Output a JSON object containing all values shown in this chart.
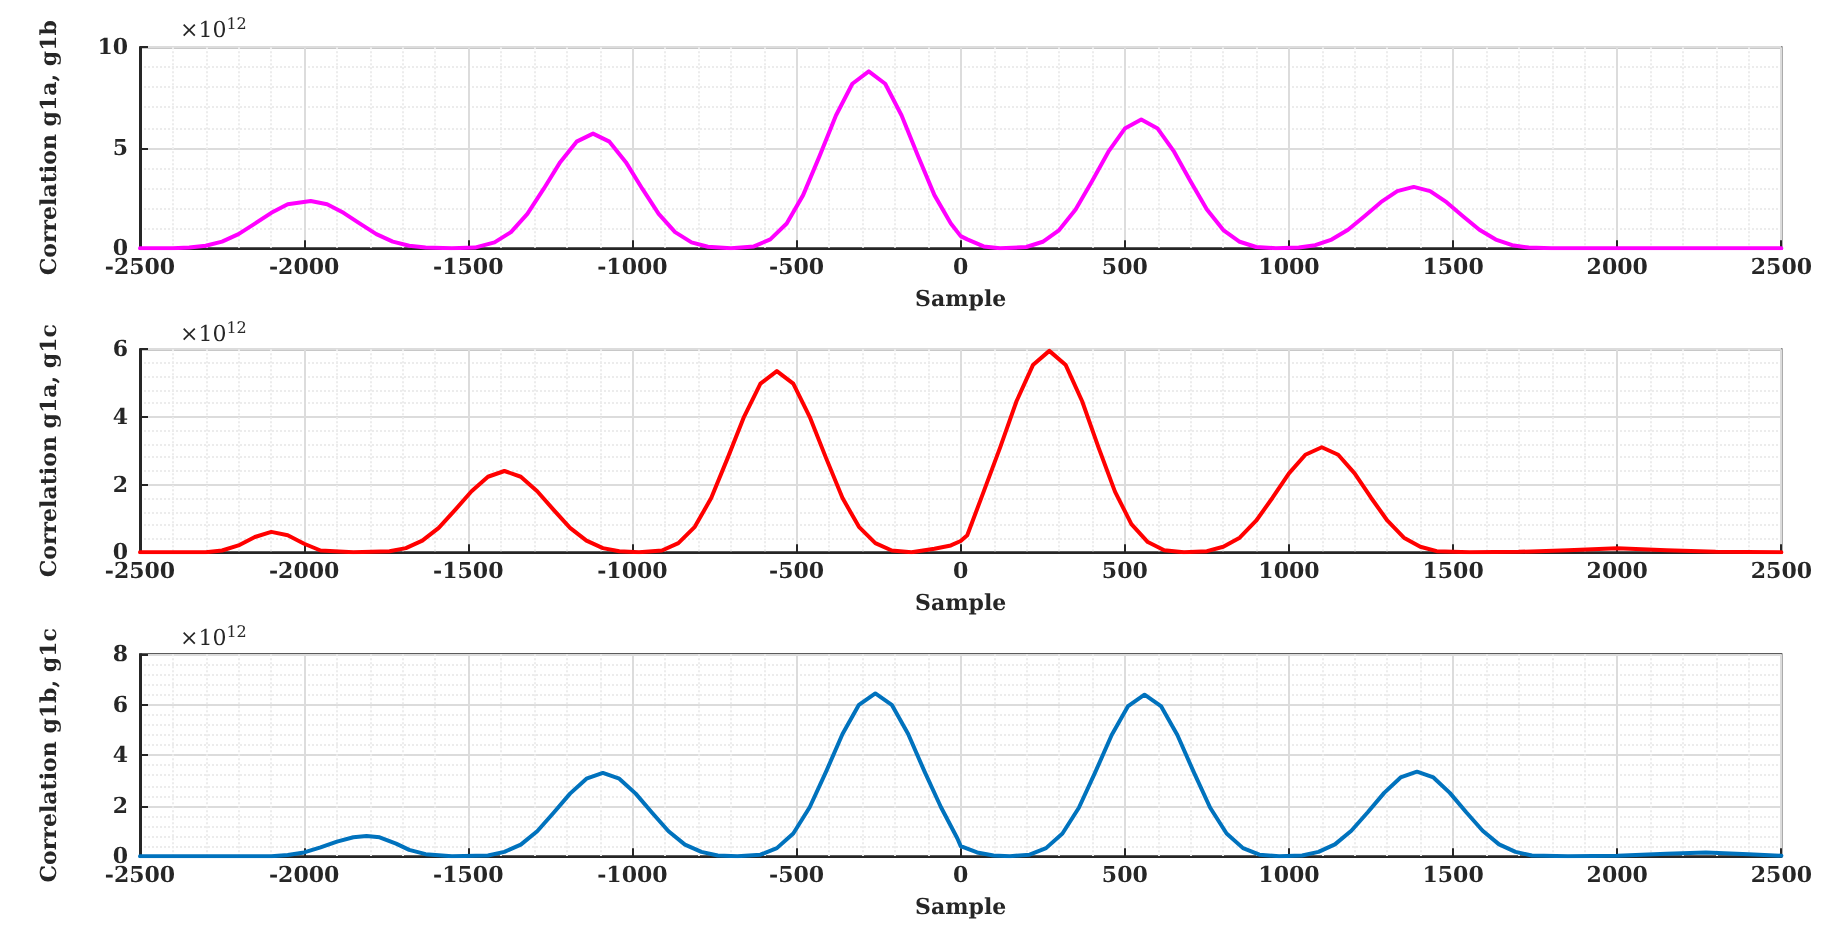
{
  "chart_data": [
    {
      "type": "line",
      "ylabel": "Correlation g1a, g1b",
      "xlabel": "Sample",
      "annotations": [
        "×10$^{12}$"
      ],
      "xlim": [
        -2500,
        2500
      ],
      "xticks": [
        -2500,
        -2000,
        -1500,
        -1000,
        -500,
        0,
        500,
        1000,
        1500,
        2000,
        2500
      ],
      "ylim": [
        0,
        10
      ],
      "yticks": [
        0,
        5,
        10
      ],
      "grid": true,
      "marker": "none",
      "line_style": "solid",
      "series": [
        {
          "color": "#ff00ff",
          "x": [
            -2500,
            -2400,
            -2350,
            -2300,
            -2250,
            -2200,
            -2150,
            -2100,
            -2050,
            -1980,
            -1930,
            -1880,
            -1830,
            -1780,
            -1730,
            -1680,
            -1630,
            -1550,
            -1480,
            -1420,
            -1370,
            -1320,
            -1270,
            -1220,
            -1170,
            -1120,
            -1070,
            -1020,
            -970,
            -920,
            -870,
            -820,
            -770,
            -700,
            -630,
            -580,
            -530,
            -480,
            -430,
            -380,
            -330,
            -280,
            -230,
            -180,
            -130,
            -80,
            -30,
            0,
            20,
            70,
            120,
            200,
            250,
            300,
            350,
            400,
            450,
            500,
            550,
            600,
            650,
            700,
            750,
            800,
            850,
            900,
            960,
            1030,
            1080,
            1130,
            1180,
            1230,
            1280,
            1330,
            1380,
            1430,
            1480,
            1530,
            1580,
            1630,
            1680,
            1730,
            1800,
            2500
          ],
          "values": [
            0,
            0,
            0.03,
            0.12,
            0.33,
            0.7,
            1.22,
            1.76,
            2.19,
            2.35,
            2.19,
            1.76,
            1.22,
            0.7,
            0.33,
            0.12,
            0.03,
            0,
            0.03,
            0.29,
            0.8,
            1.71,
            2.96,
            4.28,
            5.3,
            5.7,
            5.3,
            4.28,
            2.96,
            1.71,
            0.8,
            0.29,
            0.07,
            0,
            0.09,
            0.44,
            1.23,
            2.64,
            4.58,
            6.6,
            8.18,
            8.8,
            8.18,
            6.6,
            4.58,
            2.64,
            1.23,
            0.6,
            0.44,
            0.09,
            0,
            0.06,
            0.32,
            0.9,
            1.92,
            3.33,
            4.8,
            5.95,
            6.4,
            5.95,
            4.8,
            3.33,
            1.92,
            0.9,
            0.32,
            0.06,
            0,
            0.03,
            0.15,
            0.43,
            0.92,
            1.59,
            2.29,
            2.84,
            3.05,
            2.84,
            2.29,
            1.59,
            0.92,
            0.43,
            0.15,
            0.03,
            0,
            0
          ]
        }
      ]
    },
    {
      "type": "line",
      "ylabel": "Correlation g1a, g1c",
      "xlabel": "Sample",
      "annotations": [
        "×10$^{12}$"
      ],
      "xlim": [
        -2500,
        2500
      ],
      "xticks": [
        -2500,
        -2000,
        -1500,
        -1000,
        -500,
        0,
        500,
        1000,
        1500,
        2000,
        2500
      ],
      "ylim": [
        0,
        6
      ],
      "yticks": [
        0,
        2,
        4,
        6
      ],
      "grid": true,
      "marker": "none",
      "line_style": "solid",
      "series": [
        {
          "color": "#ff0000",
          "x": [
            -2500,
            -2300,
            -2250,
            -2200,
            -2150,
            -2100,
            -2050,
            -2000,
            -1950,
            -1850,
            -1740,
            -1690,
            -1640,
            -1590,
            -1540,
            -1490,
            -1440,
            -1390,
            -1340,
            -1290,
            -1240,
            -1190,
            -1140,
            -1090,
            -1040,
            -980,
            -910,
            -860,
            -810,
            -760,
            -710,
            -660,
            -610,
            -560,
            -510,
            -460,
            -410,
            -360,
            -310,
            -260,
            -210,
            -150,
            -80,
            -30,
            0,
            20,
            70,
            120,
            170,
            220,
            270,
            320,
            370,
            420,
            470,
            520,
            570,
            620,
            680,
            750,
            800,
            850,
            900,
            950,
            1000,
            1050,
            1100,
            1150,
            1200,
            1250,
            1300,
            1350,
            1400,
            1450,
            1550,
            1700,
            1850,
            2000,
            2150,
            2300,
            2500
          ],
          "values": [
            0,
            0,
            0.05,
            0.2,
            0.45,
            0.6,
            0.5,
            0.25,
            0.05,
            0,
            0.03,
            0.12,
            0.34,
            0.72,
            1.25,
            1.8,
            2.23,
            2.4,
            2.23,
            1.8,
            1.25,
            0.72,
            0.34,
            0.12,
            0.03,
            0,
            0.05,
            0.27,
            0.75,
            1.6,
            2.78,
            4.0,
            4.98,
            5.35,
            4.98,
            4.0,
            2.78,
            1.6,
            0.75,
            0.27,
            0.05,
            0,
            0.1,
            0.2,
            0.33,
            0.5,
            1.79,
            3.09,
            4.46,
            5.53,
            5.95,
            5.53,
            4.46,
            3.09,
            1.79,
            0.83,
            0.3,
            0.06,
            0,
            0.03,
            0.16,
            0.43,
            0.93,
            1.61,
            2.33,
            2.88,
            3.1,
            2.88,
            2.33,
            1.61,
            0.93,
            0.43,
            0.16,
            0.03,
            0,
            0.01,
            0.06,
            0.12,
            0.06,
            0.01,
            0
          ]
        }
      ]
    },
    {
      "type": "line",
      "ylabel": "Correlation g1b, g1c",
      "xlabel": "Sample",
      "annotations": [
        "×10$^{12}$"
      ],
      "xlim": [
        -2500,
        2500
      ],
      "xticks": [
        -2500,
        -2000,
        -1500,
        -1000,
        -500,
        0,
        500,
        1000,
        1500,
        2000,
        2500
      ],
      "ylim": [
        0,
        8
      ],
      "yticks": [
        0,
        2,
        4,
        6,
        8
      ],
      "grid": true,
      "marker": "none",
      "line_style": "solid",
      "series": [
        {
          "color": "#0072bd",
          "x": [
            -2500,
            -2100,
            -2050,
            -2000,
            -1950,
            -1900,
            -1850,
            -1810,
            -1770,
            -1720,
            -1680,
            -1630,
            -1550,
            -1440,
            -1390,
            -1340,
            -1290,
            -1240,
            -1190,
            -1140,
            -1090,
            -1040,
            -990,
            -940,
            -890,
            -840,
            -790,
            -740,
            -680,
            -610,
            -560,
            -510,
            -460,
            -410,
            -360,
            -310,
            -260,
            -210,
            -160,
            -110,
            -60,
            -10,
            0,
            50,
            100,
            150,
            210,
            260,
            310,
            360,
            410,
            460,
            510,
            560,
            610,
            660,
            710,
            760,
            810,
            860,
            910,
            970,
            1040,
            1090,
            1140,
            1190,
            1240,
            1290,
            1340,
            1390,
            1440,
            1490,
            1540,
            1590,
            1640,
            1690,
            1740,
            1850,
            2000,
            2150,
            2270,
            2400,
            2500
          ],
          "values": [
            0,
            0,
            0.05,
            0.15,
            0.35,
            0.58,
            0.75,
            0.8,
            0.75,
            0.5,
            0.25,
            0.08,
            0,
            0.03,
            0.17,
            0.46,
            0.99,
            1.72,
            2.48,
            3.07,
            3.3,
            3.07,
            2.48,
            1.72,
            0.99,
            0.46,
            0.17,
            0.03,
            0,
            0.06,
            0.32,
            0.9,
            1.94,
            3.35,
            4.84,
            6.0,
            6.45,
            6.0,
            4.84,
            3.35,
            1.94,
            0.7,
            0.4,
            0.15,
            0.03,
            0,
            0.06,
            0.32,
            0.9,
            1.92,
            3.33,
            4.8,
            5.95,
            6.4,
            5.95,
            4.8,
            3.33,
            1.92,
            0.9,
            0.32,
            0.06,
            0,
            0.03,
            0.17,
            0.47,
            1.01,
            1.74,
            2.51,
            3.12,
            3.35,
            3.12,
            2.51,
            1.74,
            1.01,
            0.47,
            0.17,
            0.03,
            0,
            0.02,
            0.1,
            0.15,
            0.08,
            0.02
          ]
        }
      ]
    }
  ]
}
